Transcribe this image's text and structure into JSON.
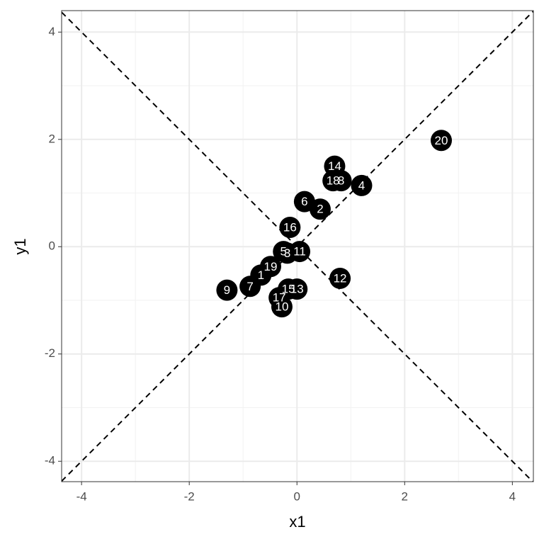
{
  "chart_data": {
    "type": "scatter",
    "x_label": "x1",
    "y_label": "y1",
    "labels": [
      "1",
      "2",
      "3",
      "4",
      "5",
      "6",
      "7",
      "8",
      "9",
      "10",
      "11",
      "12",
      "13",
      "14",
      "15",
      "16",
      "17",
      "18",
      "19",
      "20"
    ],
    "x": [
      -0.67,
      0.43,
      -0.18,
      1.2,
      -0.25,
      0.14,
      -0.87,
      0.82,
      -1.3,
      -0.28,
      0.05,
      0.8,
      0.0,
      0.7,
      -0.16,
      -0.13,
      -0.33,
      0.67,
      -0.49,
      2.68
    ],
    "y": [
      -0.53,
      0.7,
      -0.12,
      1.14,
      -0.09,
      0.84,
      -0.74,
      1.23,
      -0.81,
      -1.12,
      -0.09,
      -0.59,
      -0.79,
      1.5,
      -0.79,
      0.36,
      -0.95,
      1.23,
      -0.37,
      1.98
    ],
    "color": "#000000",
    "xlim": [
      -4.37,
      4.39
    ],
    "ylim": [
      -4.38,
      4.4
    ],
    "xticks": [
      -4,
      -2,
      0,
      2,
      4
    ],
    "yticks": [
      -4,
      -2,
      0,
      2,
      4
    ],
    "xminor": [
      -3,
      -1,
      1,
      3
    ],
    "yminor": [
      -3,
      -1,
      1,
      3
    ],
    "grid": true,
    "reference_lines": [
      {
        "slope": 1,
        "intercept": 0
      },
      {
        "slope": -1,
        "intercept": 0
      }
    ]
  }
}
